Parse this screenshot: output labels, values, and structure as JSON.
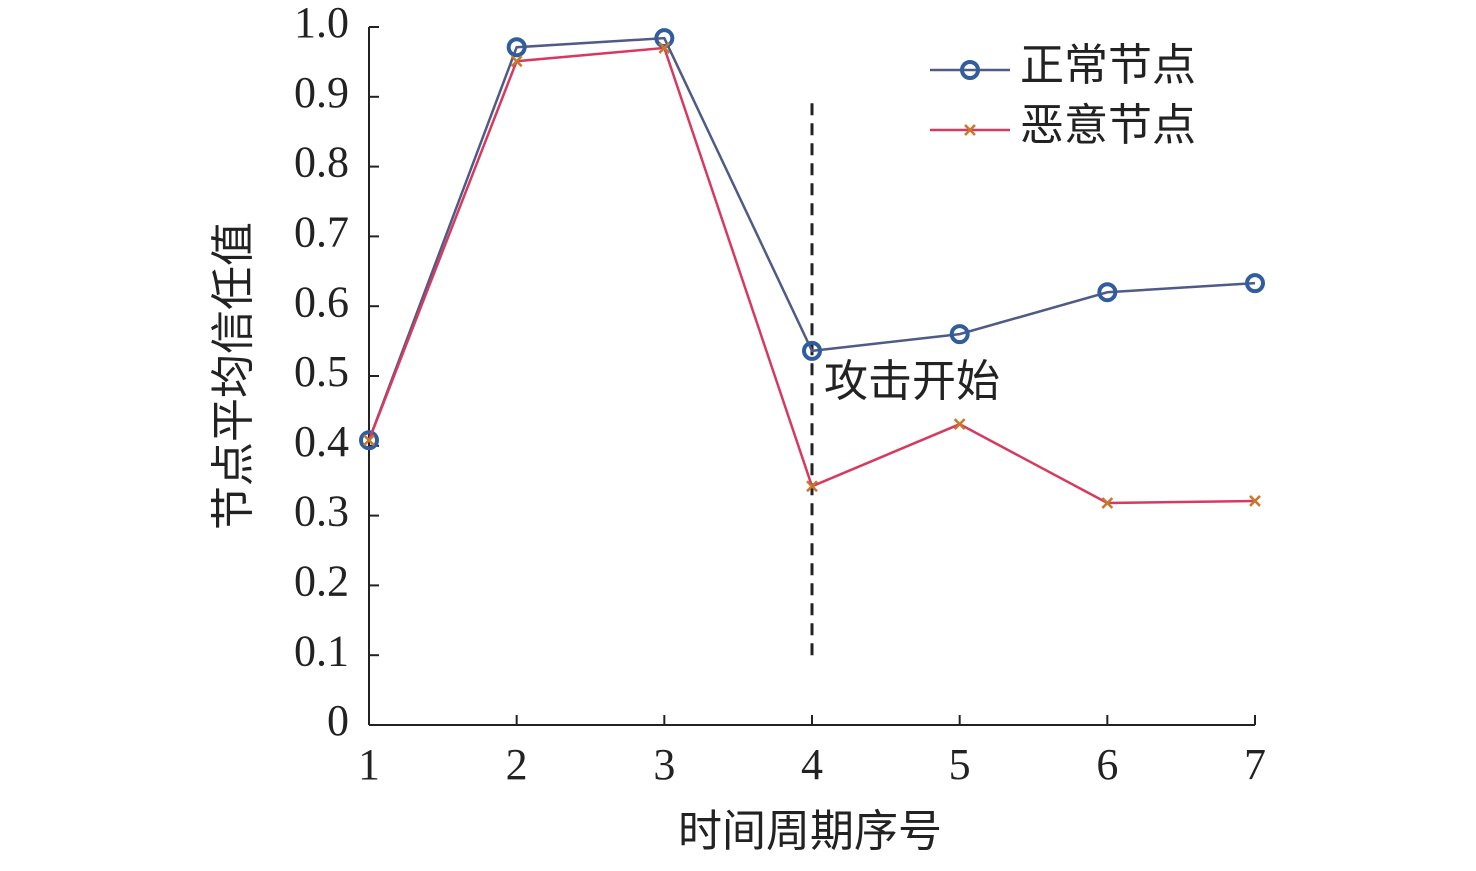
{
  "chart_data": {
    "type": "line",
    "x_label": "时间周期序号",
    "y_label": "节点平均信任值",
    "x": [
      1,
      2,
      3,
      4,
      5,
      6,
      7
    ],
    "series": [
      {
        "name": "正常节点",
        "color": "#4f5b86",
        "marker": "circle",
        "marker_color": "#2f5d9e",
        "values": [
          0.408,
          0.971,
          0.984,
          0.536,
          0.56,
          0.62,
          0.633
        ]
      },
      {
        "name": "恶意节点",
        "color": "#d63a5e",
        "marker": "x",
        "marker_color": "#c8782c",
        "values": [
          0.408,
          0.951,
          0.97,
          0.342,
          0.431,
          0.318,
          0.321
        ]
      }
    ],
    "xlim": [
      1,
      7
    ],
    "xticks": [
      1,
      2,
      3,
      4,
      5,
      6,
      7
    ],
    "ylim": [
      0,
      1
    ],
    "yticks": [
      0,
      0.1,
      0.2,
      0.3,
      0.4,
      0.5,
      0.6,
      0.7,
      0.8,
      0.9,
      {
        "value": 1,
        "label": "1.0"
      }
    ],
    "vline": {
      "x": 4,
      "y_from": 0.1,
      "y_to": 0.9
    },
    "annotation": "攻击开始",
    "legend": "upper right",
    "grid": false
  }
}
